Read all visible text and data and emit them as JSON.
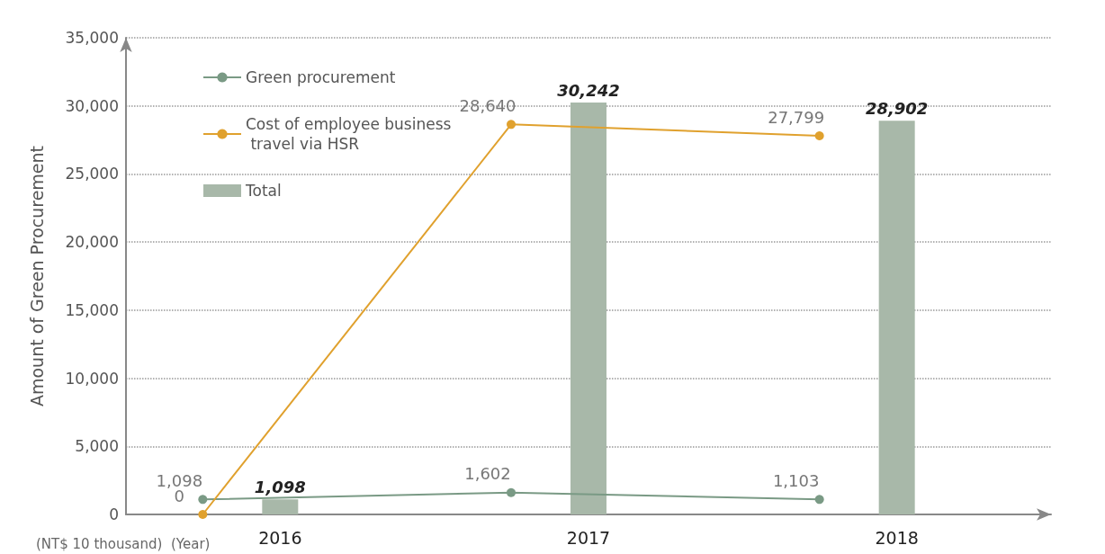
{
  "chart_data": {
    "type": "bar",
    "ylabel": "Amount of Green Procurement",
    "annotations": [
      "(NT$ 10 thousand)",
      "(Year)"
    ],
    "categories": [
      "2016",
      "2017",
      "2018"
    ],
    "ylim": [
      0,
      35000
    ],
    "yticks": [
      0,
      {
        "value": 5000,
        "label": "5,000"
      },
      {
        "value": 10000,
        "label": "10,000"
      },
      {
        "value": 15000,
        "label": "15,000"
      },
      {
        "value": 20000,
        "label": "20,000"
      },
      {
        "value": 25000,
        "label": "25,000"
      },
      {
        "value": 30000,
        "label": "30,000"
      },
      {
        "value": 35000,
        "label": "35,000"
      }
    ],
    "grid": "y",
    "legend": "top left",
    "marker": "circle",
    "series": [
      {
        "name": "Green procurement",
        "type": "line",
        "color": "#7a9a85",
        "values": [
          1098,
          1602,
          1103
        ],
        "value_labels": [
          "1,098",
          "1,602",
          "1,103"
        ]
      },
      {
        "name": "Cost of employee business travel via HSR",
        "type": "line",
        "color": "#e0a12e",
        "values": [
          0,
          28640,
          27799
        ],
        "value_labels": [
          "0",
          "28,640",
          "27,799"
        ]
      },
      {
        "name": "Total",
        "color": "#a8b8a9",
        "values": [
          1098,
          30242,
          28902
        ],
        "value_labels": [
          "1,098",
          "30,242",
          "28,902"
        ]
      }
    ]
  }
}
